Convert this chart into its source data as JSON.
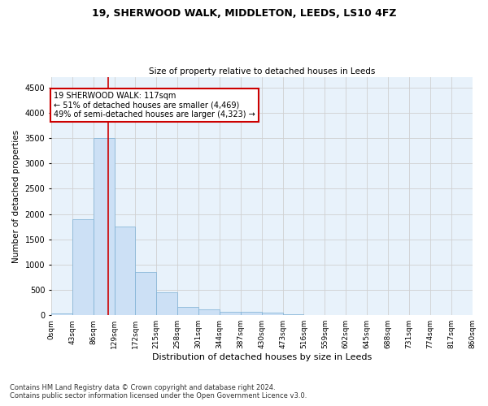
{
  "title1": "19, SHERWOOD WALK, MIDDLETON, LEEDS, LS10 4FZ",
  "title2": "Size of property relative to detached houses in Leeds",
  "xlabel": "Distribution of detached houses by size in Leeds",
  "ylabel": "Number of detached properties",
  "footnote1": "Contains HM Land Registry data © Crown copyright and database right 2024.",
  "footnote2": "Contains public sector information licensed under the Open Government Licence v3.0.",
  "bar_values": [
    30,
    1900,
    3500,
    1750,
    850,
    450,
    160,
    110,
    70,
    60,
    50,
    20,
    10,
    5,
    3,
    2,
    1,
    1,
    0,
    0
  ],
  "bin_edges": [
    0,
    43,
    86,
    129,
    172,
    215,
    258,
    301,
    344,
    387,
    430,
    473,
    516,
    559,
    602,
    645,
    688,
    731,
    774,
    817,
    860
  ],
  "bar_color": "#cce0f5",
  "bar_edge_color": "#7bafd4",
  "grid_color": "#d0d0d0",
  "bg_color": "#e8f2fb",
  "property_size": 117,
  "annotation_title": "19 SHERWOOD WALK: 117sqm",
  "annotation_line1": "← 51% of detached houses are smaller (4,469)",
  "annotation_line2": "49% of semi-detached houses are larger (4,323) →",
  "annotation_box_color": "#ffffff",
  "annotation_border_color": "#cc0000",
  "vline_color": "#cc0000",
  "ylim": [
    0,
    4700
  ],
  "yticks": [
    0,
    500,
    1000,
    1500,
    2000,
    2500,
    3000,
    3500,
    4000,
    4500
  ]
}
